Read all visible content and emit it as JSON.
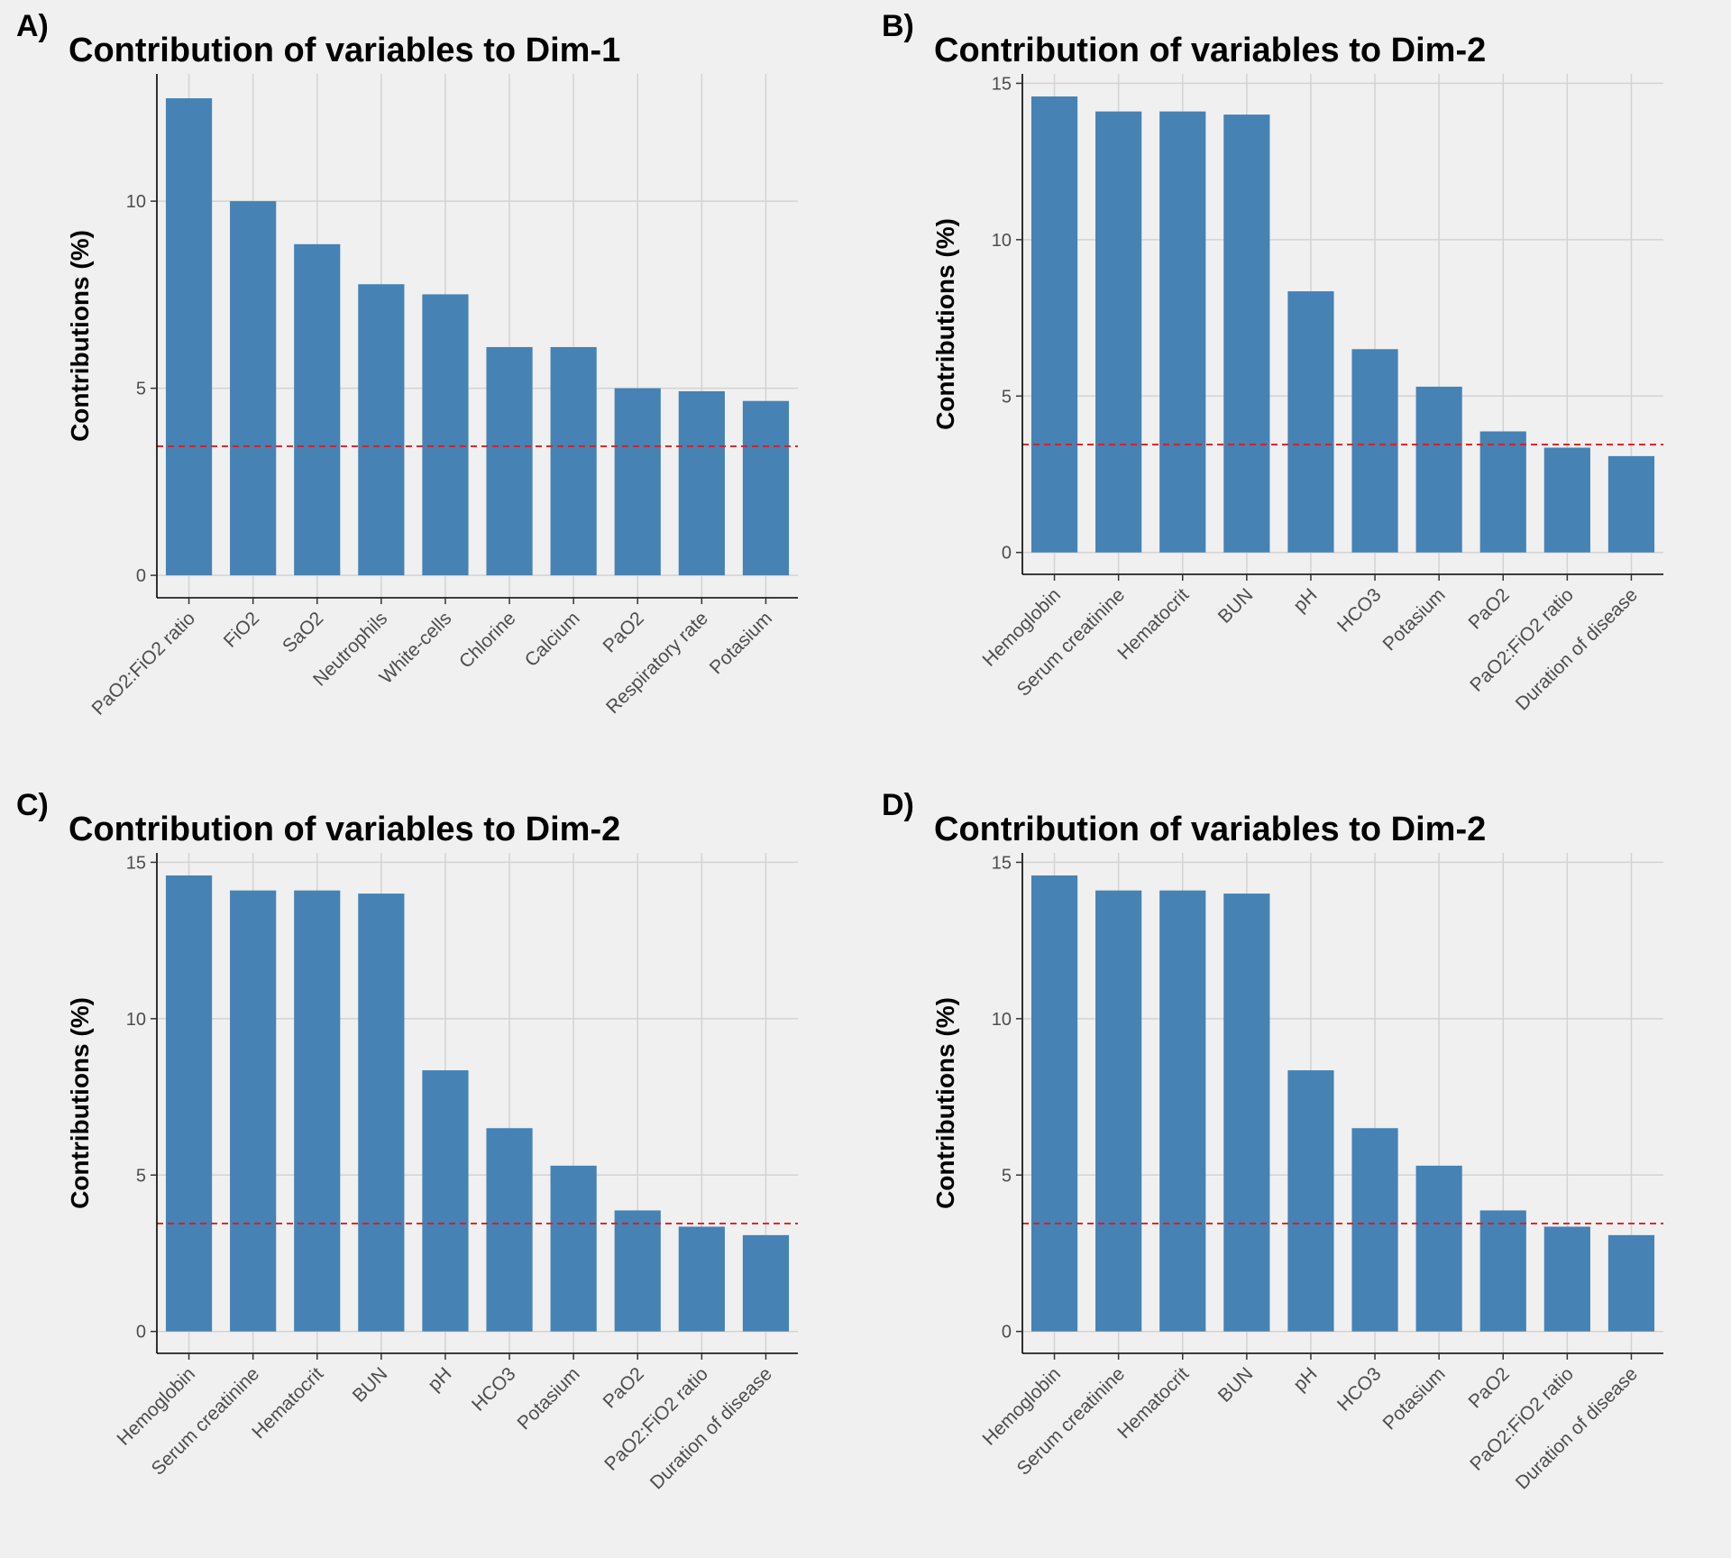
{
  "colors": {
    "bar": "#4682b4",
    "reference_line": "#e41a1c"
  },
  "chart_data": [
    {
      "type": "bar",
      "panel": "A)",
      "title": "Contribution of variables to Dim-1",
      "xlabel": "",
      "ylabel": "Contributions (%)",
      "categories": [
        "PaO2:FiO2 ratio",
        "FiO2",
        "SaO2",
        "Neutrophils",
        "White-cells",
        "Chlorine",
        "Calcium",
        "PaO2",
        "Respiratory rate",
        "Potasium"
      ],
      "values": [
        12.75,
        10.0,
        8.85,
        7.78,
        7.51,
        6.1,
        6.1,
        5.0,
        4.92,
        4.66
      ],
      "reference_line": 3.45,
      "ylim": [
        -0.6,
        13.4
      ],
      "yticks": [
        0,
        5,
        10
      ],
      "grid": true
    },
    {
      "type": "bar",
      "panel": "B)",
      "title": "Contribution of variables to Dim-2",
      "xlabel": "",
      "ylabel": "Contributions (%)",
      "categories": [
        "Hemoglobin",
        "Serum creatinine",
        "Hematocrit",
        "BUN",
        "pH",
        "HCO3",
        "Potasium",
        "PaO2",
        "PaO2:FiO2 ratio",
        "Duration of disease"
      ],
      "values": [
        14.58,
        14.1,
        14.1,
        14.0,
        8.35,
        6.5,
        5.3,
        3.87,
        3.35,
        3.08
      ],
      "reference_line": 3.45,
      "ylim": [
        -0.7,
        15.3
      ],
      "yticks": [
        0,
        5,
        10,
        15
      ],
      "grid": true
    },
    {
      "type": "bar",
      "panel": "C)",
      "title": "Contribution of variables to Dim-2",
      "xlabel": "",
      "ylabel": "Contributions (%)",
      "categories": [
        "Hemoglobin",
        "Serum creatinine",
        "Hematocrit",
        "BUN",
        "pH",
        "HCO3",
        "Potasium",
        "PaO2",
        "PaO2:FiO2 ratio",
        "Duration of disease"
      ],
      "values": [
        14.58,
        14.1,
        14.1,
        14.0,
        8.35,
        6.5,
        5.3,
        3.87,
        3.35,
        3.08
      ],
      "reference_line": 3.45,
      "ylim": [
        -0.7,
        15.3
      ],
      "yticks": [
        0,
        5,
        10,
        15
      ],
      "grid": true
    },
    {
      "type": "bar",
      "panel": "D)",
      "title": "Contribution of variables to Dim-2",
      "xlabel": "",
      "ylabel": "Contributions (%)",
      "categories": [
        "Hemoglobin",
        "Serum creatinine",
        "Hematocrit",
        "BUN",
        "pH",
        "HCO3",
        "Potasium",
        "PaO2",
        "PaO2:FiO2 ratio",
        "Duration of disease"
      ],
      "values": [
        14.58,
        14.1,
        14.1,
        14.0,
        8.35,
        6.5,
        5.3,
        3.87,
        3.35,
        3.08
      ],
      "reference_line": 3.45,
      "ylim": [
        -0.7,
        15.3
      ],
      "yticks": [
        0,
        5,
        10,
        15
      ],
      "grid": true
    }
  ]
}
